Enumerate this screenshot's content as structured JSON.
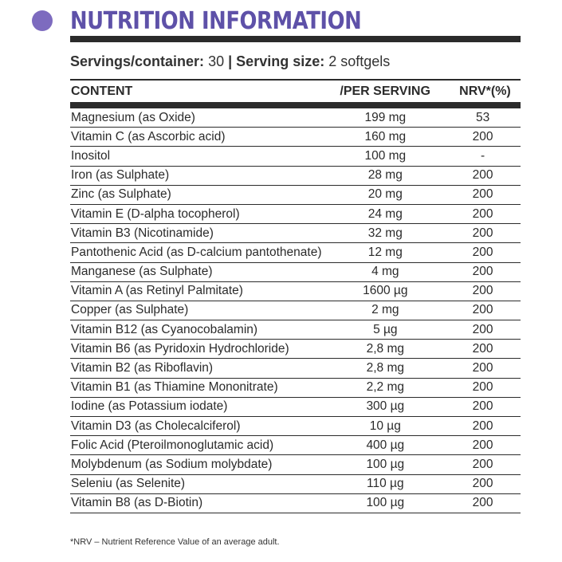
{
  "title": "NUTRITION INFORMATION",
  "servings": {
    "container_label": "Servings/container:",
    "container_value": "30",
    "separator": "|",
    "size_label": "Serving size:",
    "size_value": "2 softgels"
  },
  "table": {
    "headers": [
      "CONTENT",
      "/PER SERVING",
      "NRV*(%)"
    ],
    "rows": [
      [
        "Magnesium (as Oxide)",
        "199 mg",
        "53"
      ],
      [
        "Vitamin C (as Ascorbic acid)",
        "160 mg",
        "200"
      ],
      [
        "Inositol",
        "100 mg",
        "-"
      ],
      [
        "Iron (as Sulphate)",
        "28 mg",
        "200"
      ],
      [
        "Zinc (as Sulphate)",
        "20 mg",
        "200"
      ],
      [
        "Vitamin E (D-alpha tocopherol)",
        "24 mg",
        "200"
      ],
      [
        "Vitamin B3 (Nicotinamide)",
        "32 mg",
        "200"
      ],
      [
        "Pantothenic Acid (as D-calcium pantothenate)",
        "12 mg",
        "200"
      ],
      [
        "Manganese (as Sulphate)",
        "4 mg",
        "200"
      ],
      [
        "Vitamin A (as Retinyl Palmitate)",
        "1600 µg",
        "200"
      ],
      [
        "Copper (as Sulphate)",
        "2 mg",
        "200"
      ],
      [
        "Vitamin B12 (as Cyanocobalamin)",
        "5 µg",
        "200"
      ],
      [
        "Vitamin B6 (as Pyridoxin Hydrochloride)",
        "2,8 mg",
        "200"
      ],
      [
        "Vitamin B2 (as Riboflavin)",
        "2,8 mg",
        "200"
      ],
      [
        "Vitamin B1 (as Thiamine Mononitrate)",
        "2,2 mg",
        "200"
      ],
      [
        "Iodine (as Potassium iodate)",
        "300 µg",
        "200"
      ],
      [
        "Vitamin D3 (as Cholecalciferol)",
        "10 µg",
        "200"
      ],
      [
        "Folic Acid (Pteroilmonoglutamic acid)",
        "400 µg",
        "200"
      ],
      [
        "Molybdenum (as Sodium molybdate)",
        "100 µg",
        "200"
      ],
      [
        "Seleniu (as Selenite)",
        "110 µg",
        "200"
      ],
      [
        "Vitamin B8 (as D-Biotin)",
        "100 µg",
        "200"
      ]
    ]
  },
  "footnote": "*NRV – Nutrient Reference Value of an average adult.",
  "colors": {
    "accent": "#5e51a8",
    "dot": "#7d6bbf",
    "rule": "#2b2b2b"
  }
}
